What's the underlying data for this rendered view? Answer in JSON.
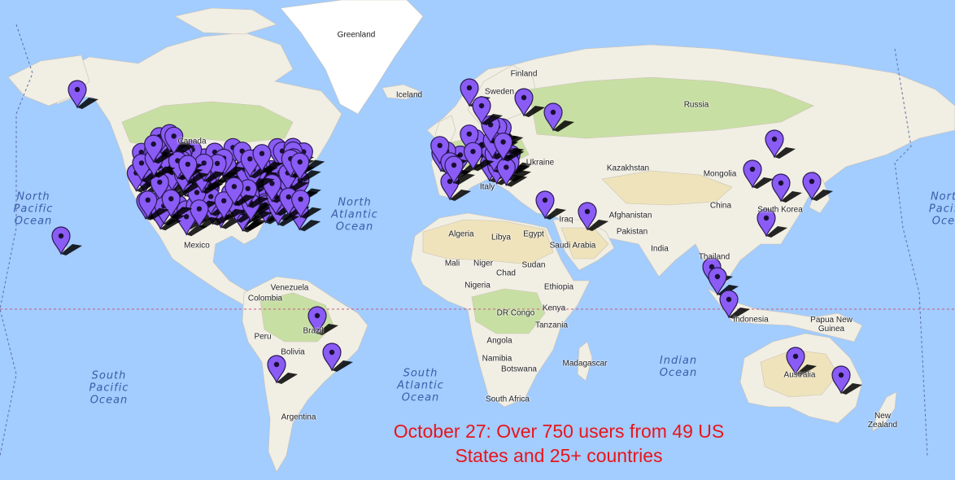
{
  "map": {
    "water_color": "#a3ccff",
    "land_color": "#f1eee4",
    "forest_color": "#c8dfa4",
    "desert_color": "#efe3bc",
    "ice_color": "#ffffff",
    "pin_color": "#8a5cf5",
    "pin_icon": "map-marker-pin-icon"
  },
  "caption": {
    "line1": "October 27: Over 750 users from 49 US",
    "line2": "States and 25+ countries"
  },
  "country_labels": [
    {
      "id": "greenland",
      "text": "Greenland"
    },
    {
      "id": "iceland",
      "text": "Iceland"
    },
    {
      "id": "finland",
      "text": "Finland"
    },
    {
      "id": "sweden",
      "text": "Sweden"
    },
    {
      "id": "russia",
      "text": "Russia"
    },
    {
      "id": "canada",
      "text": "Canada"
    },
    {
      "id": "ukraine",
      "text": "Ukraine"
    },
    {
      "id": "kazakhstan",
      "text": "Kazakhstan"
    },
    {
      "id": "mongolia",
      "text": "Mongolia"
    },
    {
      "id": "china",
      "text": "China"
    },
    {
      "id": "south-korea",
      "text": "South Korea"
    },
    {
      "id": "italy",
      "text": "Italy"
    },
    {
      "id": "iraq",
      "text": "Iraq"
    },
    {
      "id": "afghanistan",
      "text": "Afghanistan"
    },
    {
      "id": "pakistan",
      "text": "Pakistan"
    },
    {
      "id": "india",
      "text": "India"
    },
    {
      "id": "saudi-arabia",
      "text": "Saudi Arabia"
    },
    {
      "id": "egypt",
      "text": "Egypt"
    },
    {
      "id": "libya",
      "text": "Libya"
    },
    {
      "id": "algeria",
      "text": "Algeria"
    },
    {
      "id": "mali",
      "text": "Mali"
    },
    {
      "id": "niger",
      "text": "Niger"
    },
    {
      "id": "chad",
      "text": "Chad"
    },
    {
      "id": "sudan",
      "text": "Sudan"
    },
    {
      "id": "nigeria",
      "text": "Nigeria"
    },
    {
      "id": "ethiopia",
      "text": "Ethiopia"
    },
    {
      "id": "dr-congo",
      "text": "DR Congo"
    },
    {
      "id": "kenya",
      "text": "Kenya"
    },
    {
      "id": "tanzania",
      "text": "Tanzania"
    },
    {
      "id": "angola",
      "text": "Angola"
    },
    {
      "id": "namibia",
      "text": "Namibia"
    },
    {
      "id": "botswana",
      "text": "Botswana"
    },
    {
      "id": "madagascar",
      "text": "Madagascar"
    },
    {
      "id": "south-africa",
      "text": "South Africa"
    },
    {
      "id": "mexico",
      "text": "Mexico"
    },
    {
      "id": "venezuela",
      "text": "Venezuela"
    },
    {
      "id": "colombia",
      "text": "Colombia"
    },
    {
      "id": "peru",
      "text": "Peru"
    },
    {
      "id": "brazil",
      "text": "Brazil"
    },
    {
      "id": "bolivia",
      "text": "Bolivia"
    },
    {
      "id": "argentina",
      "text": "Argentina"
    },
    {
      "id": "thailand",
      "text": "Thailand"
    },
    {
      "id": "indonesia",
      "text": "Indonesia"
    },
    {
      "id": "papua-new-guinea",
      "text": "Papua New\nGuinea"
    },
    {
      "id": "australia",
      "text": "Australia"
    },
    {
      "id": "new-zealand",
      "text": "New\nZealand"
    }
  ],
  "ocean_labels": [
    {
      "id": "north-pacific-ocean",
      "lines": [
        "North",
        "Pacific",
        "Ocean"
      ]
    },
    {
      "id": "north-pacific-ocean-east",
      "lines": [
        "Nort",
        "Pacif",
        "Oce"
      ]
    },
    {
      "id": "north-atlantic-ocean",
      "lines": [
        "North",
        "Atlantic",
        "Ocean"
      ]
    },
    {
      "id": "south-pacific-ocean",
      "lines": [
        "South",
        "Pacific",
        "Ocean"
      ]
    },
    {
      "id": "south-atlantic-ocean",
      "lines": [
        "South",
        "Atlantic",
        "Ocean"
      ]
    },
    {
      "id": "indian-ocean",
      "lines": [
        "Indian",
        "Ocean"
      ]
    }
  ]
}
